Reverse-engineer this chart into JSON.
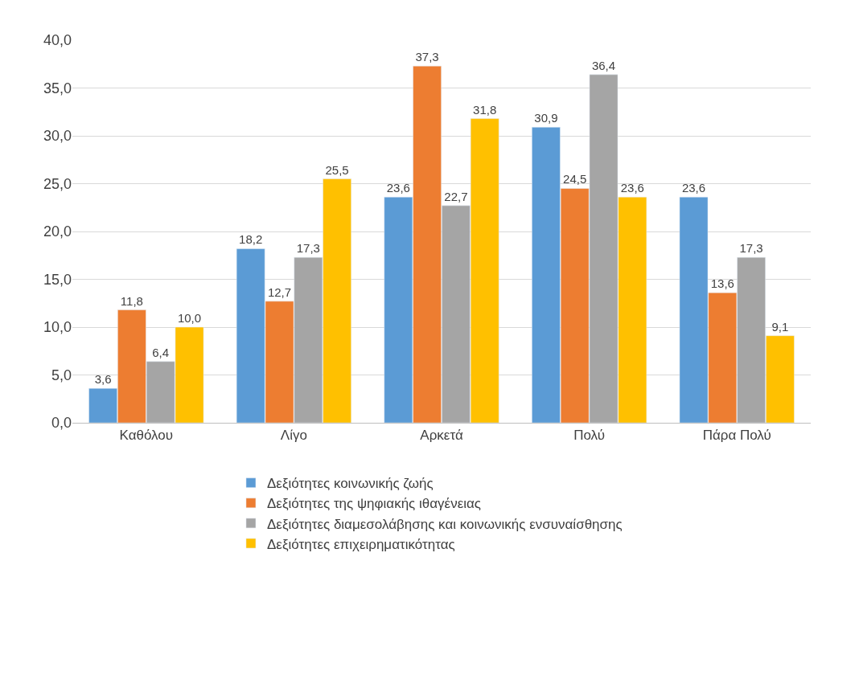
{
  "chart_data": {
    "type": "bar",
    "categories": [
      "Καθόλου",
      "Λίγο",
      "Αρκετά",
      "Πολύ",
      "Πάρα Πολύ"
    ],
    "series": [
      {
        "name": "Δεξιότητες κοινωνικής ζωής",
        "color": "#5b9bd5",
        "values": [
          3.6,
          18.2,
          23.6,
          30.9,
          23.6
        ],
        "value_labels": [
          "3,6",
          "18,2",
          "23,6",
          "30,9",
          "23,6"
        ]
      },
      {
        "name": "Δεξιότητες της ψηφιακής ιθαγένειας",
        "color": "#ed7d31",
        "values": [
          11.8,
          12.7,
          37.3,
          24.5,
          13.6
        ],
        "value_labels": [
          "11,8",
          "12,7",
          "37,3",
          "24,5",
          "13,6"
        ]
      },
      {
        "name": "Δεξιότητες διαμεσολάβησης και κοινωνικής ενσυναίσθησης",
        "color": "#a5a5a5",
        "values": [
          6.4,
          17.3,
          22.7,
          36.4,
          17.3
        ],
        "value_labels": [
          "6,4",
          "17,3",
          "22,7",
          "36,4",
          "17,3"
        ]
      },
      {
        "name": "Δεξιότητες επιχειρηματικότητας",
        "color": "#ffc000",
        "values": [
          10.0,
          25.5,
          31.8,
          23.6,
          9.1
        ],
        "value_labels": [
          "10,0",
          "25,5",
          "31,8",
          "23,6",
          "9,1"
        ]
      }
    ],
    "ylim": [
      0,
      40
    ],
    "yticks": [
      {
        "value": 0,
        "label": "0,0"
      },
      {
        "value": 5,
        "label": "5,0"
      },
      {
        "value": 10,
        "label": "10,0"
      },
      {
        "value": 15,
        "label": "15,0"
      },
      {
        "value": 20,
        "label": "20,0"
      },
      {
        "value": 25,
        "label": "25,0"
      },
      {
        "value": 30,
        "label": "30,0"
      },
      {
        "value": 35,
        "label": "35,0"
      },
      {
        "value": 40,
        "label": "40,0"
      }
    ],
    "grid": "y",
    "legend": "bottom"
  }
}
